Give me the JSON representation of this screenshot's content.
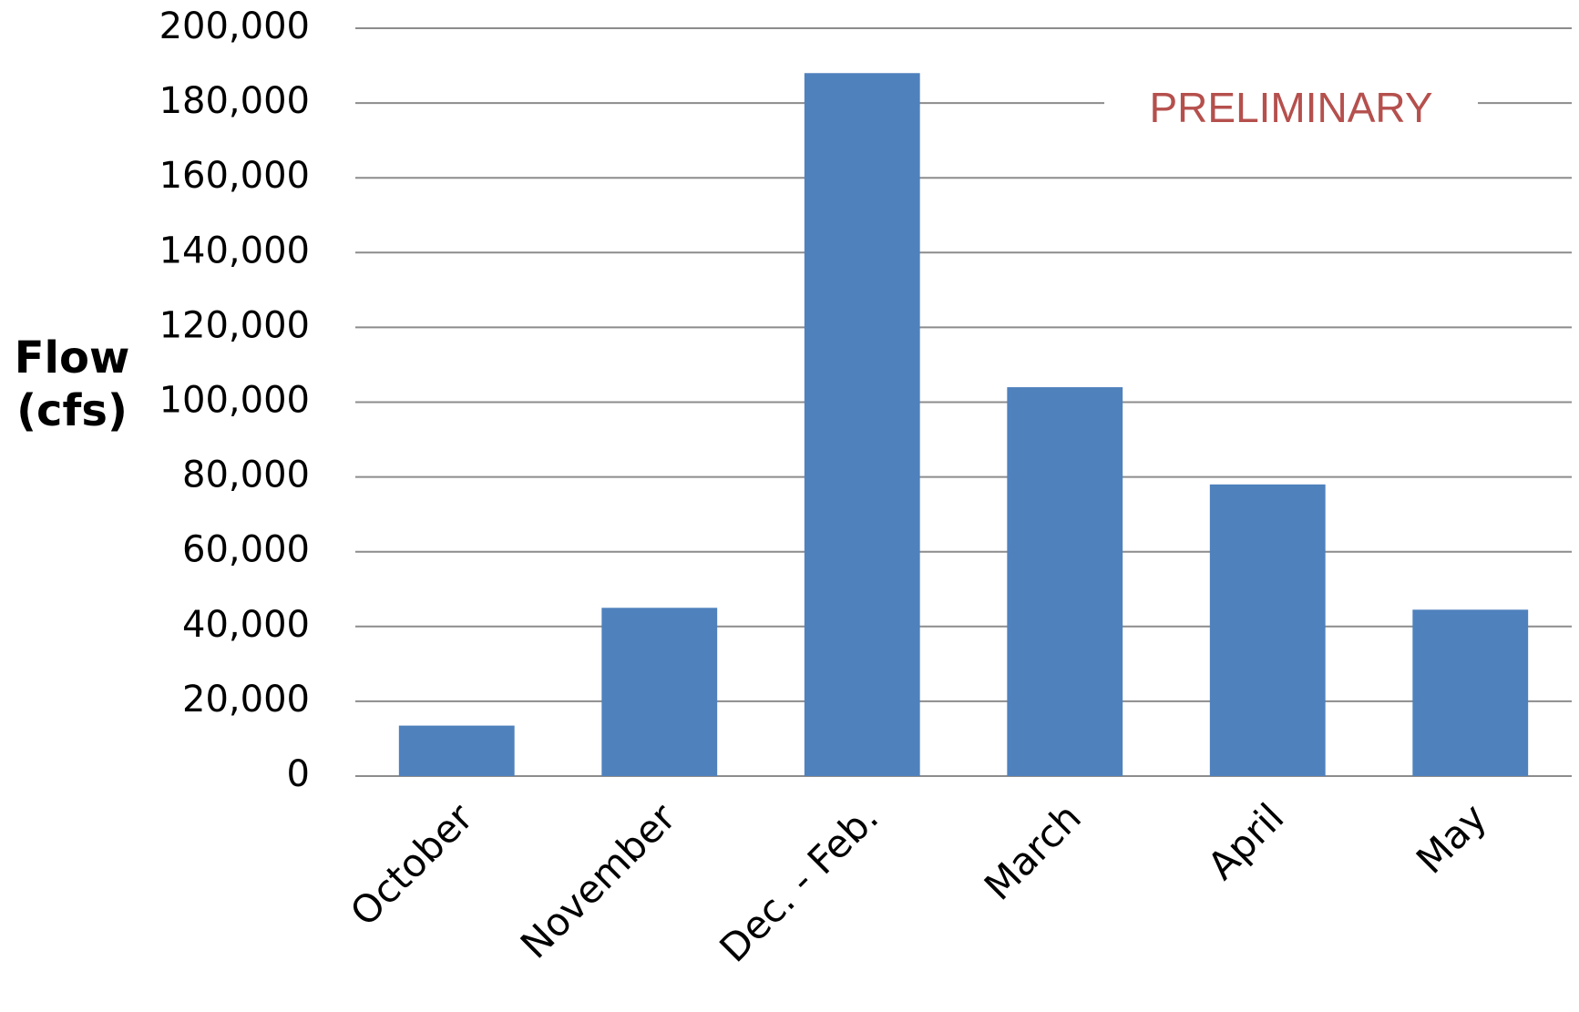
{
  "chart_data": {
    "type": "bar",
    "y_label": "Flow (cfs)",
    "annotation": "PRELIMINARY",
    "annotation_color": "#b5504d",
    "categories": [
      "October",
      "November",
      "Dec. - Feb.",
      "March",
      "April",
      "May"
    ],
    "values": [
      13500,
      45000,
      188000,
      104000,
      78000,
      44500
    ],
    "color": "#4f81bd",
    "ylim": [
      0,
      200000
    ],
    "yticks": [
      0,
      {
        "value": 20000,
        "label": "20,000"
      },
      {
        "value": 40000,
        "label": "40,000"
      },
      {
        "value": 60000,
        "label": "60,000"
      },
      {
        "value": 80000,
        "label": "80,000"
      },
      {
        "value": 100000,
        "label": "100,000"
      },
      {
        "value": 120000,
        "label": "120,000"
      },
      {
        "value": 140000,
        "label": "140,000"
      },
      {
        "value": 160000,
        "label": "160,000"
      },
      {
        "value": 180000,
        "label": "180,000"
      },
      {
        "value": 200000,
        "label": "200,000"
      }
    ],
    "grid": true
  }
}
